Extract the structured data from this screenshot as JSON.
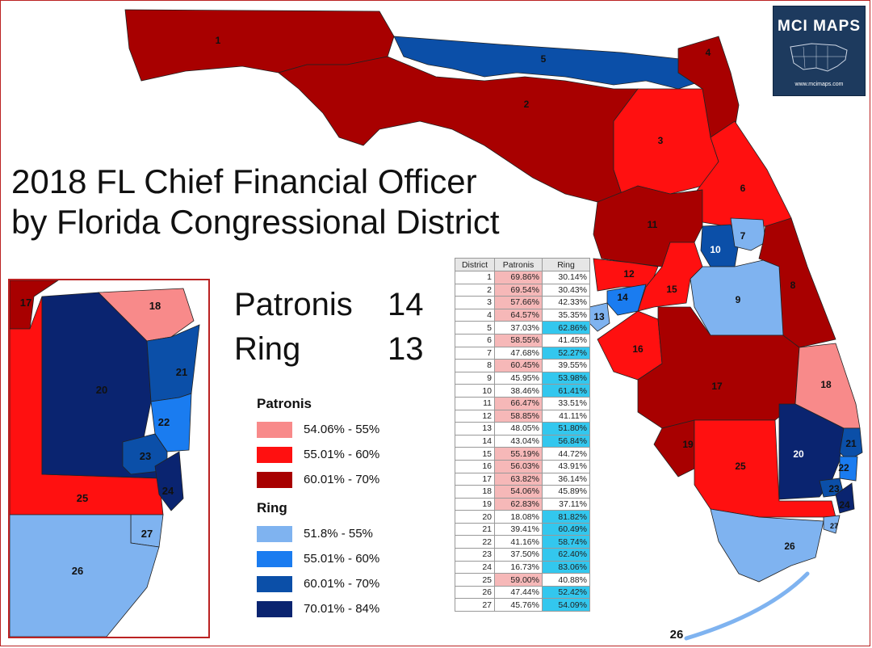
{
  "title_line1": "2018 FL Chief Financial Officer",
  "title_line2": "by Florida Congressional District",
  "summary": {
    "patronis_label": "Patronis",
    "patronis_count": "14",
    "ring_label": "Ring",
    "ring_count": "13"
  },
  "logo": {
    "text": "MCI MAPS",
    "url": "www.mcimaps.com"
  },
  "legend": {
    "patronis_header": "Patronis",
    "ring_header": "Ring",
    "patronis_bins": [
      {
        "label": "54.06% - 55%",
        "color": "#f88a8a"
      },
      {
        "label": "55.01% - 60%",
        "color": "#ff1010"
      },
      {
        "label": "60.01% - 70%",
        "color": "#a80000"
      }
    ],
    "ring_bins": [
      {
        "label": "51.8% - 55%",
        "color": "#7fb3f0"
      },
      {
        "label": "55.01% - 60%",
        "color": "#1a7cf0"
      },
      {
        "label": "60.01% - 70%",
        "color": "#0b4fa8"
      },
      {
        "label": "70.01% - 84%",
        "color": "#0a2470"
      }
    ]
  },
  "table": {
    "headers": [
      "District",
      "Patronis",
      "Ring"
    ],
    "highlight_patronis": "#f6b8b8",
    "highlight_ring": "#33c7ee",
    "rows": [
      [
        "1",
        "69.86%",
        "30.14%",
        "P"
      ],
      [
        "2",
        "69.54%",
        "30.43%",
        "P"
      ],
      [
        "3",
        "57.66%",
        "42.33%",
        "P"
      ],
      [
        "4",
        "64.57%",
        "35.35%",
        "P"
      ],
      [
        "5",
        "37.03%",
        "62.86%",
        "R"
      ],
      [
        "6",
        "58.55%",
        "41.45%",
        "P"
      ],
      [
        "7",
        "47.68%",
        "52.27%",
        "R"
      ],
      [
        "8",
        "60.45%",
        "39.55%",
        "P"
      ],
      [
        "9",
        "45.95%",
        "53.98%",
        "R"
      ],
      [
        "10",
        "38.46%",
        "61.41%",
        "R"
      ],
      [
        "11",
        "66.47%",
        "33.51%",
        "P"
      ],
      [
        "12",
        "58.85%",
        "41.11%",
        "P"
      ],
      [
        "13",
        "48.05%",
        "51.80%",
        "R"
      ],
      [
        "14",
        "43.04%",
        "56.84%",
        "R"
      ],
      [
        "15",
        "55.19%",
        "44.72%",
        "P"
      ],
      [
        "16",
        "56.03%",
        "43.91%",
        "P"
      ],
      [
        "17",
        "63.82%",
        "36.14%",
        "P"
      ],
      [
        "18",
        "54.06%",
        "45.89%",
        "P"
      ],
      [
        "19",
        "62.83%",
        "37.11%",
        "P"
      ],
      [
        "20",
        "18.08%",
        "81.82%",
        "R"
      ],
      [
        "21",
        "39.41%",
        "60.49%",
        "R"
      ],
      [
        "22",
        "41.16%",
        "58.74%",
        "R"
      ],
      [
        "23",
        "37.50%",
        "62.40%",
        "R"
      ],
      [
        "24",
        "16.73%",
        "83.06%",
        "R"
      ],
      [
        "25",
        "59.00%",
        "40.88%",
        "P"
      ],
      [
        "26",
        "47.44%",
        "52.42%",
        "R"
      ],
      [
        "27",
        "45.76%",
        "54.09%",
        "R"
      ]
    ]
  },
  "district_labels": [
    "1",
    "2",
    "3",
    "4",
    "5",
    "6",
    "7",
    "8",
    "9",
    "10",
    "11",
    "12",
    "13",
    "14",
    "15",
    "16",
    "17",
    "18",
    "19",
    "20",
    "21",
    "22",
    "23",
    "24",
    "25",
    "26",
    "27",
    "26"
  ],
  "inset_labels": [
    "17",
    "18",
    "20",
    "21",
    "22",
    "23",
    "24",
    "25",
    "26",
    "27"
  ]
}
